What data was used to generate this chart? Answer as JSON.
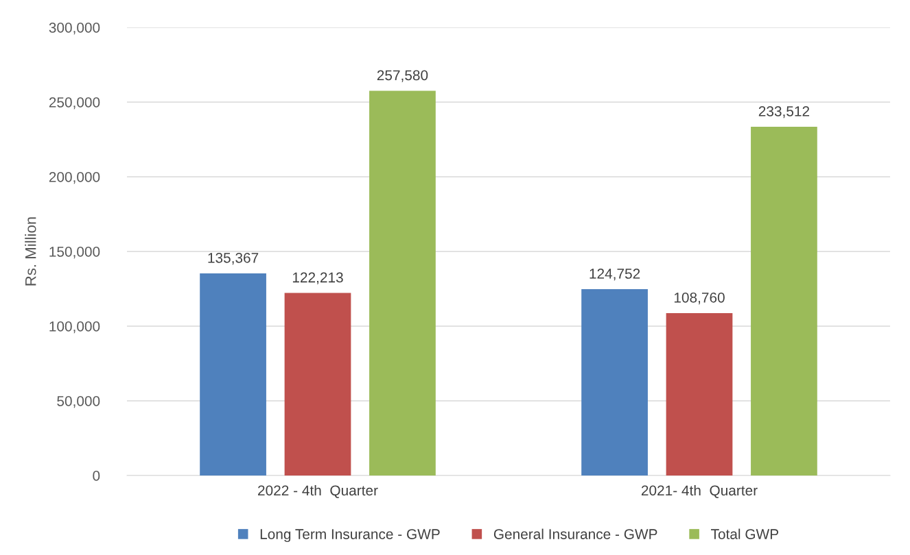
{
  "chart_data": {
    "type": "bar",
    "ylabel": "Rs. Million",
    "categories": [
      "2022 - 4th  Quarter",
      "2021- 4th  Quarter"
    ],
    "series": [
      {
        "name": "Long Term Insurance - GWP",
        "color": "#4f81bd",
        "values": [
          135367,
          124752
        ]
      },
      {
        "name": "General Insurance - GWP",
        "color": "#c0504d",
        "values": [
          122213,
          108760
        ]
      },
      {
        "name": "Total GWP",
        "color": "#9bbb59",
        "values": [
          257580,
          233512
        ]
      }
    ],
    "ylim": [
      0,
      300000
    ],
    "yticks": [
      {
        "value": 0,
        "label": "0"
      },
      {
        "value": 50000,
        "label": "50,000"
      },
      {
        "value": 100000,
        "label": "100,000"
      },
      {
        "value": 150000,
        "label": "150,000"
      },
      {
        "value": 200000,
        "label": "200,000"
      },
      {
        "value": 250000,
        "label": "250,000"
      },
      {
        "value": 300000,
        "label": "300,000"
      }
    ],
    "grid": "y",
    "legend": "bottom",
    "value_labels": [
      [
        "135,367",
        "124,752"
      ],
      [
        "122,213",
        "108,760"
      ],
      [
        "257,580",
        "233,512"
      ]
    ]
  }
}
